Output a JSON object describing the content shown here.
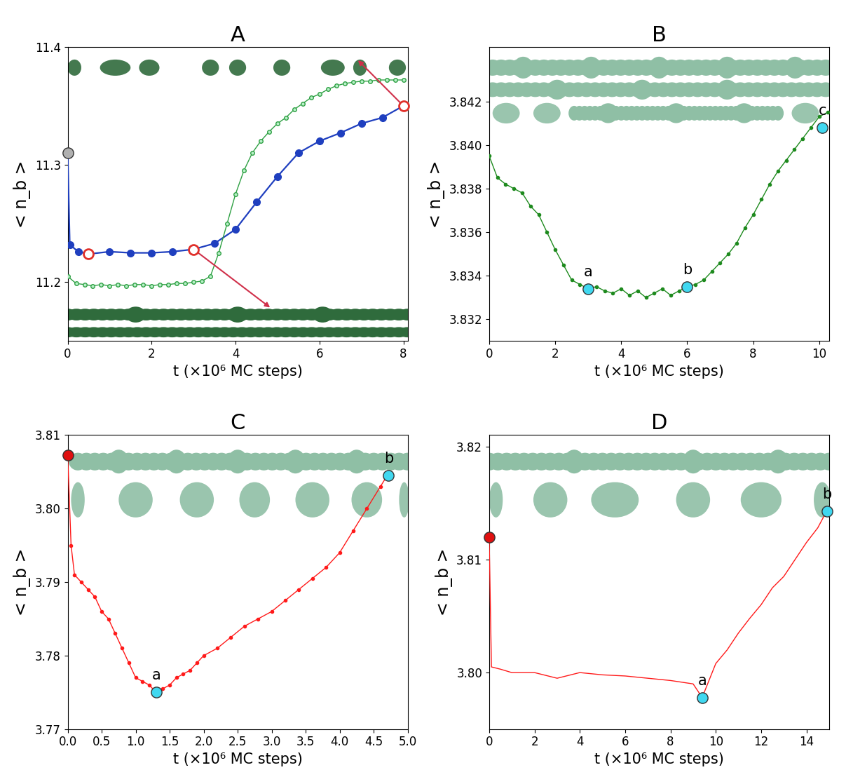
{
  "chart_data": [
    {
      "type": "line",
      "title": "A",
      "x_label": "t (×10⁶ MC steps)",
      "y_label": "< n_b >",
      "xlim": [
        0,
        8.1
      ],
      "ylim": [
        11.15,
        11.4
      ],
      "xticks": [
        0,
        2,
        4,
        6,
        8
      ],
      "yticks": [
        11.2,
        11.3,
        11.4
      ],
      "series": [
        {
          "color": "#1f3fbf",
          "marker": "o",
          "line_style": "solid",
          "x": [
            0,
            0.05,
            0.25,
            0.5,
            1,
            1.5,
            2,
            2.5,
            3,
            3.5,
            4,
            4.5,
            5,
            5.5,
            6,
            6.5,
            7,
            7.5,
            8
          ],
          "values": [
            11.31,
            11.232,
            11.226,
            11.224,
            11.226,
            11.225,
            11.225,
            11.226,
            11.228,
            11.233,
            11.245,
            11.268,
            11.29,
            11.31,
            11.32,
            11.327,
            11.335,
            11.34,
            11.35
          ]
        },
        {
          "color": "#2ea043",
          "marker": "o",
          "line_style": "solid",
          "x": [
            0,
            0.2,
            0.4,
            0.6,
            0.8,
            1.0,
            1.2,
            1.4,
            1.6,
            1.8,
            2.0,
            2.2,
            2.4,
            2.6,
            2.8,
            3.0,
            3.2,
            3.4,
            3.6,
            3.8,
            4.0,
            4.2,
            4.4,
            4.6,
            4.8,
            5.0,
            5.2,
            5.4,
            5.6,
            5.8,
            6.0,
            6.2,
            6.4,
            6.6,
            6.8,
            7.0,
            7.2,
            7.4,
            7.6,
            7.8,
            8.0
          ],
          "values": [
            11.205,
            11.199,
            11.198,
            11.197,
            11.198,
            11.197,
            11.198,
            11.197,
            11.198,
            11.198,
            11.197,
            11.198,
            11.198,
            11.199,
            11.199,
            11.2,
            11.201,
            11.205,
            11.225,
            11.25,
            11.275,
            11.295,
            11.31,
            11.32,
            11.328,
            11.335,
            11.34,
            11.347,
            11.352,
            11.357,
            11.36,
            11.364,
            11.367,
            11.369,
            11.37,
            11.371,
            11.371,
            11.372,
            11.372,
            11.372,
            11.372
          ]
        }
      ],
      "points": [
        {
          "x": 0,
          "y": 11.31,
          "color": "#b0b0b0"
        },
        {
          "x": 0.5,
          "y": 11.224,
          "color": "#e0302a",
          "marker": "open"
        },
        {
          "x": 3,
          "y": 11.228,
          "color": "#e0302a",
          "marker": "open"
        },
        {
          "x": 8,
          "y": 11.35,
          "color": "#e0302a",
          "marker": "open"
        }
      ]
    },
    {
      "type": "line",
      "title": "B",
      "x_label": "t (×10⁶ MC steps)",
      "y_label": "< n_b >",
      "xlim": [
        0,
        10.3
      ],
      "ylim": [
        3.831,
        3.8445
      ],
      "xticks": [
        0,
        2,
        4,
        6,
        8,
        10
      ],
      "yticks": [
        3.832,
        3.834,
        3.836,
        3.838,
        {
          "value": 3.84,
          "label": "3.840"
        },
        3.842
      ],
      "series": [
        {
          "color": "#1e8a1e",
          "marker": "o",
          "line_style": "solid",
          "x": [
            0,
            0.25,
            0.5,
            0.75,
            1,
            1.25,
            1.5,
            1.75,
            2,
            2.25,
            2.5,
            2.75,
            3,
            3.25,
            3.5,
            3.75,
            4,
            4.25,
            4.5,
            4.75,
            5,
            5.25,
            5.5,
            5.75,
            6,
            6.25,
            6.5,
            6.75,
            7,
            7.25,
            7.5,
            7.75,
            8,
            8.25,
            8.5,
            8.75,
            9,
            9.25,
            9.5,
            9.75,
            10,
            10.25
          ],
          "values": [
            3.8395,
            3.8385,
            3.8382,
            3.838,
            3.8378,
            3.8372,
            3.8368,
            3.836,
            3.8352,
            3.8345,
            3.8338,
            3.8336,
            3.8334,
            3.8335,
            3.8333,
            3.8332,
            3.8334,
            3.8331,
            3.8333,
            3.833,
            3.8332,
            3.8334,
            3.8331,
            3.8333,
            3.8335,
            3.8336,
            3.8338,
            3.8342,
            3.8346,
            3.835,
            3.8355,
            3.8362,
            3.8368,
            3.8375,
            3.8382,
            3.8388,
            3.8393,
            3.8398,
            3.8403,
            3.8408,
            3.8413,
            3.8415
          ]
        }
      ],
      "points": [
        {
          "x": 3,
          "y": 3.8334,
          "color": "#40d8f0",
          "label": "a"
        },
        {
          "x": 6,
          "y": 3.8335,
          "color": "#40d8f0",
          "label": "b"
        },
        {
          "x": 10.1,
          "y": 3.8408,
          "color": "#40d8f0",
          "label": "c"
        }
      ]
    },
    {
      "type": "line",
      "title": "C",
      "x_label": "t (×10⁶ MC steps)",
      "y_label": "< n_b >",
      "xlim": [
        0,
        5
      ],
      "ylim": [
        3.77,
        3.81
      ],
      "xticks": [
        {
          "value": 0,
          "label": "0.0"
        },
        0.5,
        {
          "value": 1,
          "label": "1.0"
        },
        1.5,
        {
          "value": 2,
          "label": "2.0"
        },
        2.5,
        {
          "value": 3,
          "label": "3.0"
        },
        3.5,
        {
          "value": 4,
          "label": "4.0"
        },
        4.5,
        {
          "value": 5,
          "label": "5.0"
        }
      ],
      "yticks": [
        3.77,
        3.78,
        3.79,
        {
          "value": 3.8,
          "label": "3.80"
        },
        3.81
      ],
      "series": [
        {
          "color": "#ff1a1a",
          "marker": "o",
          "line_style": "solid",
          "x": [
            0,
            0.05,
            0.1,
            0.2,
            0.3,
            0.4,
            0.5,
            0.6,
            0.7,
            0.8,
            0.9,
            1.0,
            1.1,
            1.2,
            1.3,
            1.4,
            1.5,
            1.6,
            1.7,
            1.8,
            1.9,
            2.0,
            2.2,
            2.4,
            2.6,
            2.8,
            3.0,
            3.2,
            3.4,
            3.6,
            3.8,
            4.0,
            4.2,
            4.4,
            4.6,
            4.7
          ],
          "values": [
            3.8073,
            3.795,
            3.791,
            3.79,
            3.789,
            3.788,
            3.786,
            3.785,
            3.783,
            3.781,
            3.779,
            3.777,
            3.7765,
            3.776,
            3.775,
            3.7755,
            3.776,
            3.777,
            3.7775,
            3.778,
            3.779,
            3.78,
            3.781,
            3.7825,
            3.784,
            3.785,
            3.786,
            3.7875,
            3.789,
            3.7905,
            3.792,
            3.794,
            3.797,
            3.8,
            3.803,
            3.8045
          ]
        }
      ],
      "points": [
        {
          "x": 0,
          "y": 3.8073,
          "color": "#e01010"
        },
        {
          "x": 1.3,
          "y": 3.775,
          "color": "#40d8f0",
          "label": "a"
        },
        {
          "x": 4.72,
          "y": 3.8045,
          "color": "#40d8f0",
          "label": "b"
        }
      ]
    },
    {
      "type": "line",
      "title": "D",
      "x_label": "t (×10⁶ MC steps)",
      "y_label": "< n_b >",
      "xlim": [
        0,
        15
      ],
      "ylim": [
        3.795,
        3.821
      ],
      "xticks": [
        0,
        2,
        4,
        6,
        8,
        10,
        12,
        14
      ],
      "yticks": [
        {
          "value": 3.8,
          "label": "3.80"
        },
        3.81,
        3.82
      ],
      "series": [
        {
          "color": "#ff1a1a",
          "marker": "none",
          "line_style": "solid",
          "x": [
            0,
            0.1,
            0.5,
            1,
            2,
            3,
            4,
            5,
            6,
            7,
            8,
            9,
            9.4,
            10,
            10.5,
            11,
            11.5,
            12,
            12.5,
            13,
            13.5,
            14,
            14.5,
            14.9
          ],
          "values": [
            3.812,
            3.8005,
            3.8003,
            3.8,
            3.8,
            3.7995,
            3.8,
            3.7998,
            3.7997,
            3.7995,
            3.7993,
            3.799,
            3.7978,
            3.8008,
            3.802,
            3.8035,
            3.8048,
            3.806,
            3.8075,
            3.8085,
            3.81,
            3.8115,
            3.8128,
            3.8143
          ]
        }
      ],
      "points": [
        {
          "x": 0,
          "y": 3.812,
          "color": "#e01010"
        },
        {
          "x": 9.4,
          "y": 3.7978,
          "color": "#40d8f0",
          "label": "a"
        },
        {
          "x": 14.9,
          "y": 3.8143,
          "color": "#40d8f0",
          "label": "b"
        }
      ]
    }
  ]
}
